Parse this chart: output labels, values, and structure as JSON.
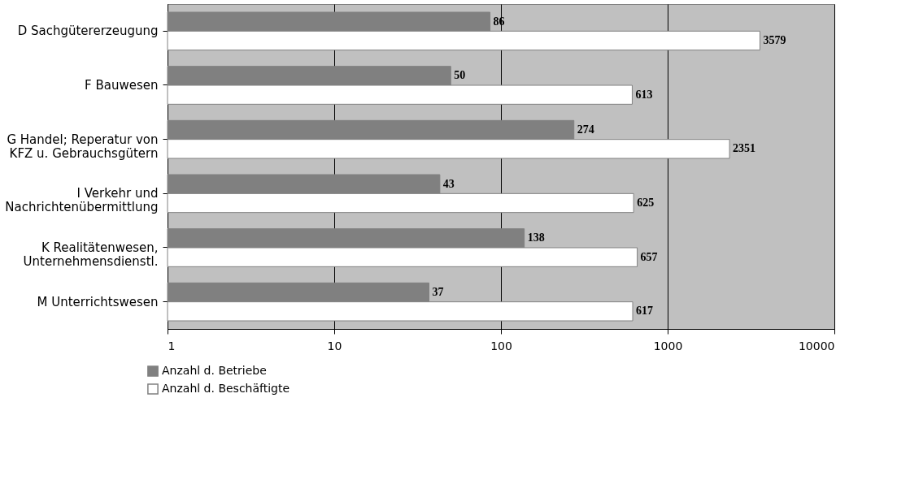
{
  "chart_data": {
    "type": "bar",
    "orientation": "horizontal",
    "categories": [
      "D Sachgütererzeugung",
      "F Bauwesen",
      "G Handel; Reperatur von\nKFZ u. Gebrauchsgütern",
      "I Verkehr und\nNachrichtenübermittlung",
      "K Realitätenwesen,\nUnternehmensdienstl.",
      "M Unterrichtswesen"
    ],
    "series": [
      {
        "name": "Anzahl d. Betriebe",
        "color": "#808080",
        "values": [
          86,
          50,
          274,
          43,
          138,
          37
        ]
      },
      {
        "name": "Anzahl d. Beschäftigte",
        "color": "#ffffff",
        "values": [
          3579,
          613,
          2351,
          625,
          657,
          617
        ]
      }
    ],
    "log": "x",
    "xlim": [
      1,
      10000
    ],
    "xticks": [
      1,
      10,
      100,
      1000,
      10000
    ],
    "grid": "x",
    "legend": "bottom left",
    "data_labels": true
  }
}
